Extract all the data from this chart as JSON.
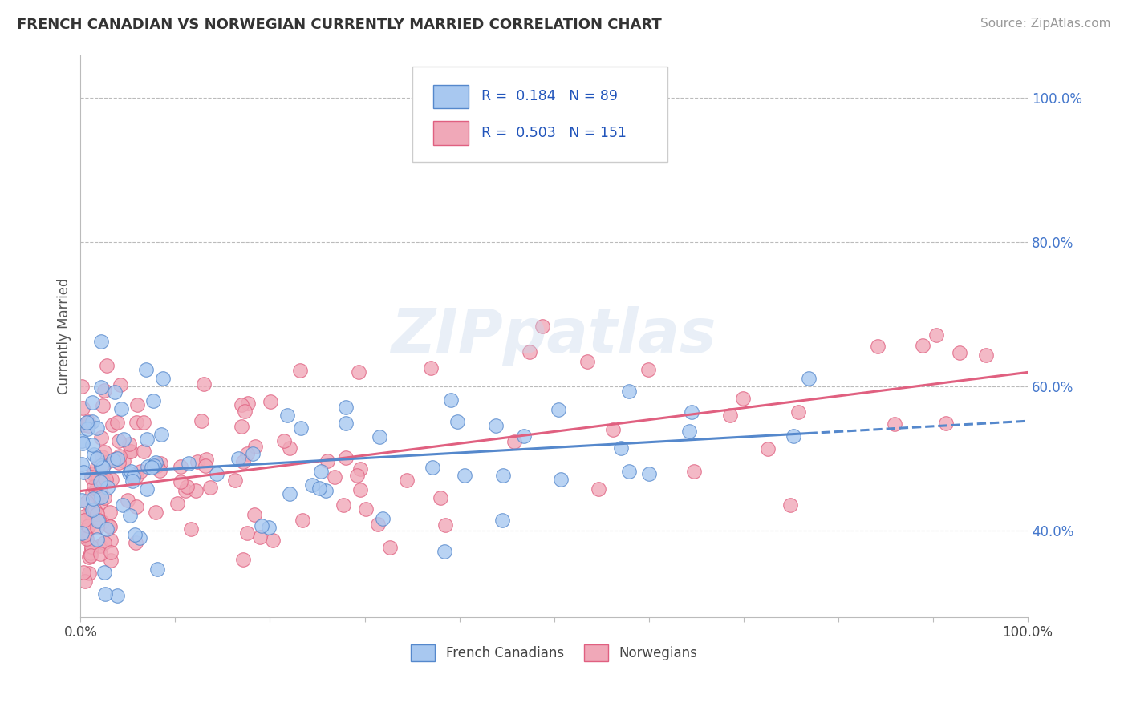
{
  "title": "FRENCH CANADIAN VS NORWEGIAN CURRENTLY MARRIED CORRELATION CHART",
  "source": "Source: ZipAtlas.com",
  "ylabel": "Currently Married",
  "xlim": [
    0.0,
    1.0
  ],
  "ylim": [
    0.28,
    1.06
  ],
  "ytick_labels_right": [
    "100.0%",
    "80.0%",
    "60.0%",
    "40.0%"
  ],
  "ytick_positions_right": [
    1.0,
    0.8,
    0.6,
    0.4
  ],
  "color_blue": "#A8C8F0",
  "color_pink": "#F0A8B8",
  "line_blue": "#5588CC",
  "line_pink": "#E06080",
  "watermark": "ZIPpatlas",
  "blue_r": 0.184,
  "blue_n": 89,
  "pink_r": 0.503,
  "pink_n": 151
}
